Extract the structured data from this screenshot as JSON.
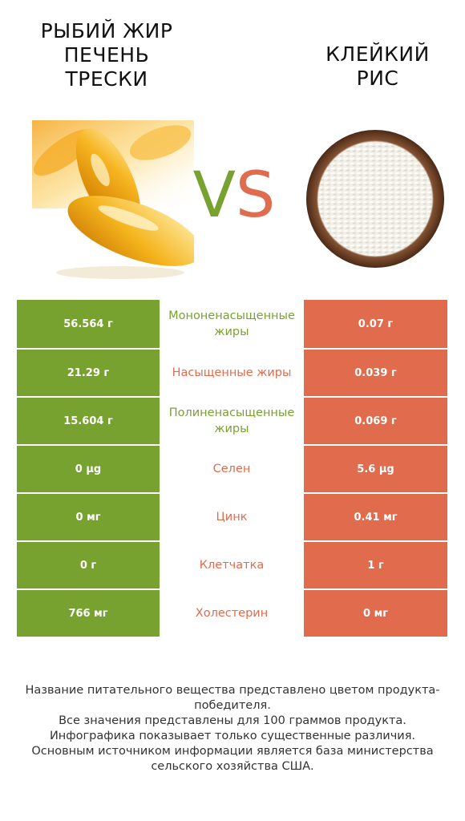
{
  "left_product": {
    "title_lines": [
      "РЫБИЙ ЖИР",
      "ПЕЧЕНЬ",
      "ТРЕСКИ"
    ]
  },
  "right_product": {
    "title_lines": [
      "КЛЕЙКИЙ",
      "РИС"
    ]
  },
  "vs": {
    "v": "V",
    "s": "S"
  },
  "colors": {
    "left": "#78a22f",
    "right": "#e06b4d"
  },
  "rows": [
    {
      "left": "56.564 г",
      "nutrient": "Мононенасыщенные жиры",
      "right": "0.07 г",
      "winner": "left"
    },
    {
      "left": "21.29 г",
      "nutrient": "Насыщенные жиры",
      "right": "0.039 г",
      "winner": "right"
    },
    {
      "left": "15.604 г",
      "nutrient": "Полиненасыщенные жиры",
      "right": "0.069 г",
      "winner": "left"
    },
    {
      "left": "0 µg",
      "nutrient": "Селен",
      "right": "5.6 µg",
      "winner": "right"
    },
    {
      "left": "0 мг",
      "nutrient": "Цинк",
      "right": "0.41 мг",
      "winner": "right"
    },
    {
      "left": "0 г",
      "nutrient": "Клетчатка",
      "right": "1 г",
      "winner": "right"
    },
    {
      "left": "766 мг",
      "nutrient": "Холестерин",
      "right": "0 мг",
      "winner": "right"
    }
  ],
  "footer": [
    "Название питательного вещества представлено цветом продукта-победителя.",
    "Все значения представлены для 100 граммов продукта.",
    "Инфографика показывает только существенные различия.",
    "Основным источником информации является база министерства сельского хозяйства США."
  ]
}
